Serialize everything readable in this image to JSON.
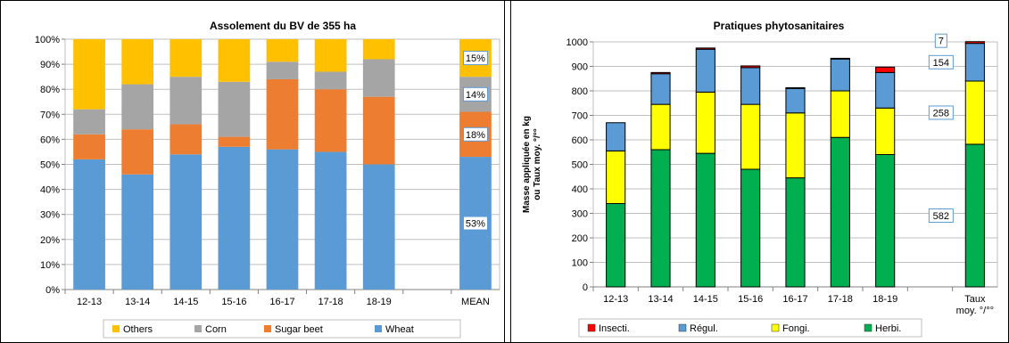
{
  "chart_data": [
    {
      "type": "bar",
      "stacked": true,
      "percent": true,
      "title": "Assolement du BV de 355 ha",
      "categories": [
        "12-13",
        "13-14",
        "14-15",
        "15-16",
        "16-17",
        "17-18",
        "18-19",
        "",
        "MEAN"
      ],
      "series": [
        {
          "name": "Wheat",
          "color": "#5B9BD5",
          "values": [
            52,
            46,
            54,
            57,
            56,
            55,
            50,
            null,
            53
          ]
        },
        {
          "name": "Sugar beet",
          "color": "#ED7D31",
          "values": [
            10,
            18,
            12,
            4,
            28,
            25,
            27,
            null,
            18
          ]
        },
        {
          "name": "Corn",
          "color": "#A5A5A5",
          "values": [
            10,
            18,
            19,
            22,
            7,
            7,
            15,
            null,
            14
          ]
        },
        {
          "name": "Others",
          "color": "#FFC000",
          "values": [
            28,
            18,
            15,
            17,
            9,
            13,
            8,
            null,
            15
          ]
        }
      ],
      "ylim": [
        0,
        100
      ],
      "yticks": [
        "0%",
        "10%",
        "20%",
        "30%",
        "40%",
        "50%",
        "60%",
        "70%",
        "80%",
        "90%",
        "100%"
      ],
      "labels": [
        {
          "series": "Wheat",
          "text": "53%"
        },
        {
          "series": "Sugar beet",
          "text": "18%"
        },
        {
          "series": "Corn",
          "text": "14%"
        },
        {
          "series": "Others",
          "text": "15%"
        }
      ],
      "legend": [
        "Others",
        "Corn",
        "Sugar beet",
        "Wheat"
      ],
      "legend_position": "bottom",
      "grid": true
    },
    {
      "type": "bar",
      "stacked": true,
      "title": "Pratiques phytosanitaires",
      "ylabel": "Masse appliquée en kg ou Taux moy. °/°°",
      "categories": [
        "12-13",
        "13-14",
        "14-15",
        "15-16",
        "16-17",
        "17-18",
        "18-19",
        "",
        "Taux moy. °/°°"
      ],
      "series": [
        {
          "name": "Herbi.",
          "color": "#00B050",
          "values": [
            340,
            560,
            545,
            480,
            445,
            610,
            540,
            null,
            582
          ]
        },
        {
          "name": "Fongi.",
          "color": "#FFFF00",
          "values": [
            215,
            185,
            250,
            265,
            265,
            190,
            190,
            null,
            258
          ]
        },
        {
          "name": "Régul.",
          "color": "#5B9BD5",
          "values": [
            115,
            125,
            175,
            150,
            100,
            130,
            145,
            null,
            154
          ]
        },
        {
          "name": "Insecti.",
          "color": "#FF0000",
          "values": [
            0,
            5,
            5,
            7,
            3,
            3,
            22,
            null,
            7
          ]
        }
      ],
      "ylim": [
        0,
        1000
      ],
      "yticks": [
        "0",
        "100",
        "200",
        "300",
        "400",
        "500",
        "600",
        "700",
        "800",
        "900",
        "1000"
      ],
      "labels": [
        {
          "series": "Herbi.",
          "text": "582"
        },
        {
          "series": "Fongi.",
          "text": "258"
        },
        {
          "series": "Régul.",
          "text": "154"
        },
        {
          "series": "Insecti.",
          "text": "7"
        }
      ],
      "legend": [
        "Insecti.",
        "Régul.",
        "Fongi.",
        "Herbi."
      ],
      "legend_position": "bottom",
      "grid": true
    }
  ]
}
